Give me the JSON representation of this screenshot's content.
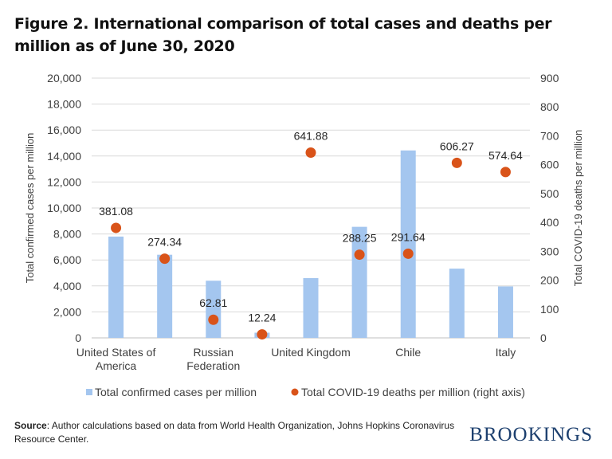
{
  "title": "Figure 2. International comparison of total cases and deaths per million as of June 30, 2020",
  "source": {
    "label": "Source",
    "text": ": Author calculations based on data from World Health Organization, Johns Hopkins Coronavirus Resource Center."
  },
  "logo": "BROOKINGS",
  "colors": {
    "bars": "#a4c6ef",
    "dots": "#d95319",
    "grid": "#d9d9d9"
  },
  "chart_data": {
    "type": "bar+scatter",
    "categories": [
      "United States of America",
      "",
      "Russian Federation",
      "",
      "United Kingdom",
      "",
      "Chile",
      "",
      "Italy"
    ],
    "ylabel": "Total confirmed cases per million",
    "y2label": "Total COVID-19 deaths per million",
    "ylim": [
      0,
      20000
    ],
    "y2lim": [
      0,
      900
    ],
    "yticks": [
      "0",
      "2,000",
      "4,000",
      "6,000",
      "8,000",
      "10,000",
      "12,000",
      "14,000",
      "16,000",
      "18,000",
      "20,000"
    ],
    "y2ticks": [
      "0",
      "100",
      "200",
      "300",
      "400",
      "500",
      "600",
      "700",
      "800",
      "900"
    ],
    "grid": true,
    "legend_position": "bottom",
    "series": [
      {
        "name": "Total confirmed cases per million",
        "type": "bar",
        "axis": "left",
        "values": [
          7800,
          6400,
          4400,
          400,
          4600,
          8550,
          14430,
          5330,
          3960
        ]
      },
      {
        "name": "Total COVID-19 deaths per million (right axis)",
        "type": "scatter",
        "axis": "right",
        "values": [
          381.08,
          274.34,
          62.81,
          12.24,
          641.88,
          288.25,
          291.64,
          606.27,
          574.64
        ],
        "labels": [
          "381.08",
          "274.34",
          "62.81",
          "12.24",
          "641.88",
          "288.25",
          "291.64",
          "606.27",
          "574.64"
        ]
      }
    ]
  }
}
